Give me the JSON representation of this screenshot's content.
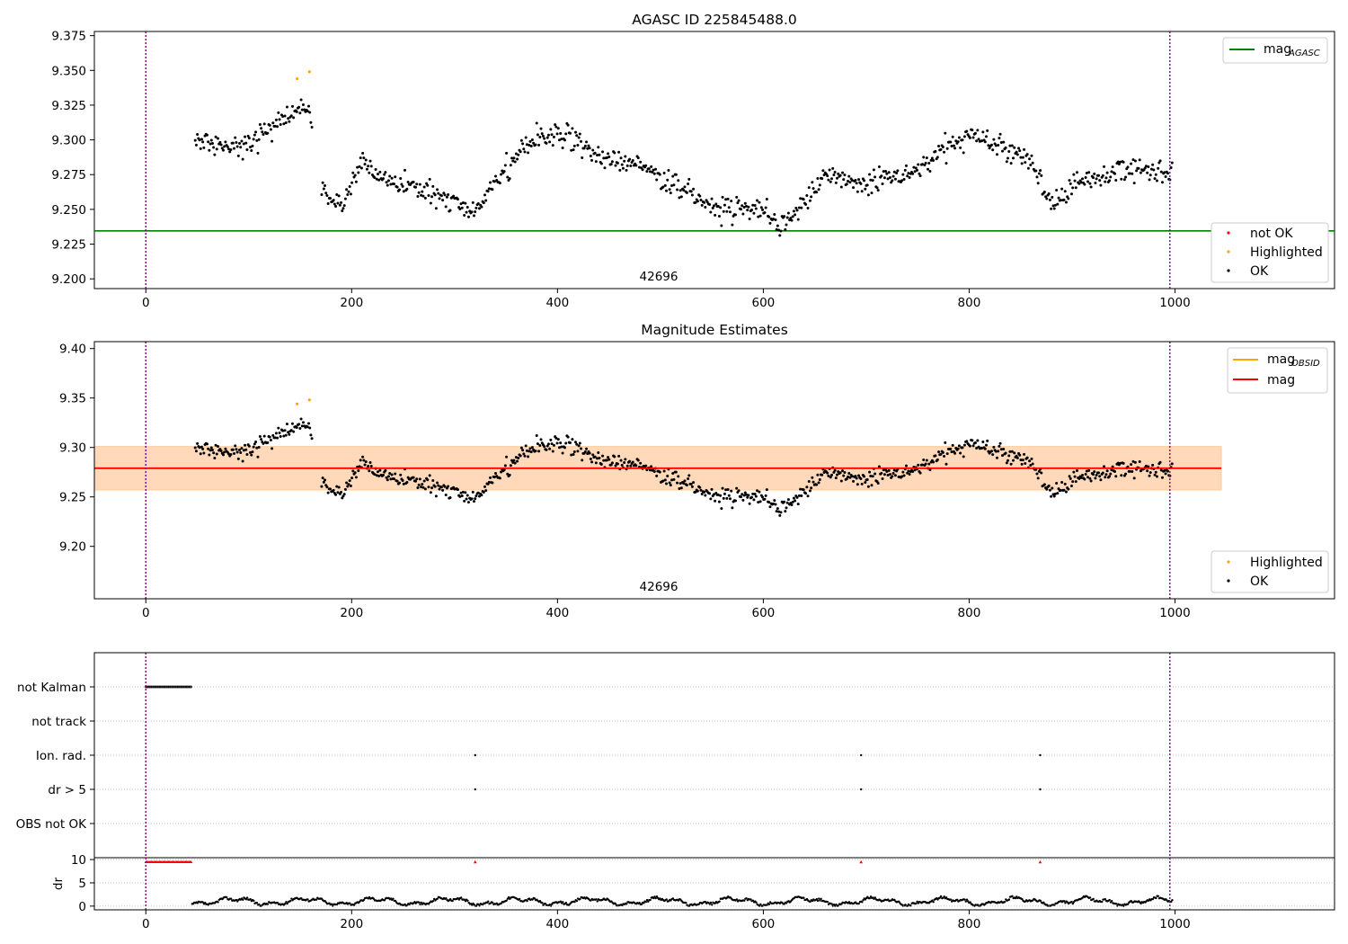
{
  "chart_data": [
    {
      "type": "scatter",
      "title": "AGASC ID 225845488.0",
      "xlim": [
        -50,
        1155
      ],
      "ylim": [
        9.193,
        9.378
      ],
      "x_ticks": [
        "0",
        "200",
        "400",
        "600",
        "800",
        "1000"
      ],
      "y_ticks": [
        "9.200",
        "9.225",
        "9.250",
        "9.275",
        "9.300",
        "9.325",
        "9.350",
        "9.375"
      ],
      "obs_annotation": "42696",
      "vertical_markers": [
        0,
        995
      ],
      "hlines": [
        {
          "name": "magAGASC",
          "value": 9.2345,
          "color": "#008000"
        }
      ],
      "legend_lines": [
        {
          "label": "mag",
          "sub": "AGASC",
          "color": "#008000"
        }
      ],
      "legend_points": [
        {
          "label": "not OK",
          "color": "#ff0000"
        },
        {
          "label": "Highlighted",
          "color": "#ffa500"
        },
        {
          "label": "OK",
          "color": "#000000"
        }
      ],
      "highlighted_points": [
        [
          147,
          9.344
        ],
        [
          159,
          9.349
        ]
      ],
      "series_curve": [
        [
          48,
          9.3
        ],
        [
          75,
          9.295
        ],
        [
          100,
          9.297
        ],
        [
          130,
          9.315
        ],
        [
          160,
          9.322
        ],
        [
          165,
          9.27
        ],
        [
          190,
          9.25
        ],
        [
          210,
          9.285
        ],
        [
          240,
          9.268
        ],
        [
          270,
          9.265
        ],
        [
          300,
          9.255
        ],
        [
          320,
          9.248
        ],
        [
          350,
          9.28
        ],
        [
          380,
          9.302
        ],
        [
          410,
          9.305
        ],
        [
          440,
          9.285
        ],
        [
          470,
          9.285
        ],
        [
          500,
          9.272
        ],
        [
          530,
          9.262
        ],
        [
          560,
          9.25
        ],
        [
          600,
          9.25
        ],
        [
          615,
          9.235
        ],
        [
          640,
          9.255
        ],
        [
          660,
          9.275
        ],
        [
          700,
          9.268
        ],
        [
          740,
          9.275
        ],
        [
          770,
          9.29
        ],
        [
          800,
          9.305
        ],
        [
          830,
          9.295
        ],
        [
          860,
          9.285
        ],
        [
          880,
          9.255
        ],
        [
          910,
          9.27
        ],
        [
          950,
          9.28
        ],
        [
          995,
          9.275
        ]
      ]
    },
    {
      "type": "scatter",
      "title": "Magnitude Estimates",
      "xlim": [
        -50,
        1155
      ],
      "ylim": [
        9.147,
        9.407
      ],
      "x_ticks": [
        "0",
        "200",
        "400",
        "600",
        "800",
        "1000"
      ],
      "y_ticks": [
        "9.20",
        "9.25",
        "9.30",
        "9.35",
        "9.40"
      ],
      "obs_annotation": "42696",
      "vertical_markers": [
        0,
        995
      ],
      "mag_line": 9.279,
      "band_outer": [
        9.257,
        9.301
      ],
      "band_inner": [
        9.257,
        9.301
      ],
      "band_x": [
        -50,
        1045
      ],
      "legend_lines": [
        {
          "label": "mag",
          "sub": "OBSID",
          "color": "#ffa500"
        },
        {
          "label": "mag",
          "sub": "",
          "color": "#ff0000"
        }
      ],
      "legend_points": [
        {
          "label": "Highlighted",
          "color": "#ffa500"
        },
        {
          "label": "OK",
          "color": "#000000"
        }
      ],
      "highlighted_points": [
        [
          147,
          9.344
        ],
        [
          159,
          9.348
        ]
      ]
    },
    {
      "type": "scatter",
      "title": "",
      "xlim": [
        -50,
        1155
      ],
      "x_ticks": [
        "0",
        "200",
        "400",
        "600",
        "800",
        "1000"
      ],
      "vertical_markers": [
        0,
        995
      ],
      "flag_rows": [
        "not Kalman",
        "not track",
        "Ion. rad.",
        "dr > 5",
        "OBS not OK"
      ],
      "flag_events": {
        "not Kalman": {
          "range": [
            0,
            45
          ]
        },
        "not track": {
          "range": null
        },
        "Ion. rad.": {
          "points": [
            320,
            695,
            869
          ]
        },
        "dr > 5": {
          "points": [
            320,
            695,
            869
          ]
        },
        "OBS not OK": {
          "range": null
        }
      },
      "dr_panel": {
        "ylabel": "dr",
        "y_ticks": [
          "0",
          "5",
          "10"
        ],
        "ylim": [
          -0.8,
          10.4
        ],
        "clipped_range": [
          0,
          45
        ],
        "clipped_points": [
          320,
          695,
          869
        ]
      }
    }
  ]
}
